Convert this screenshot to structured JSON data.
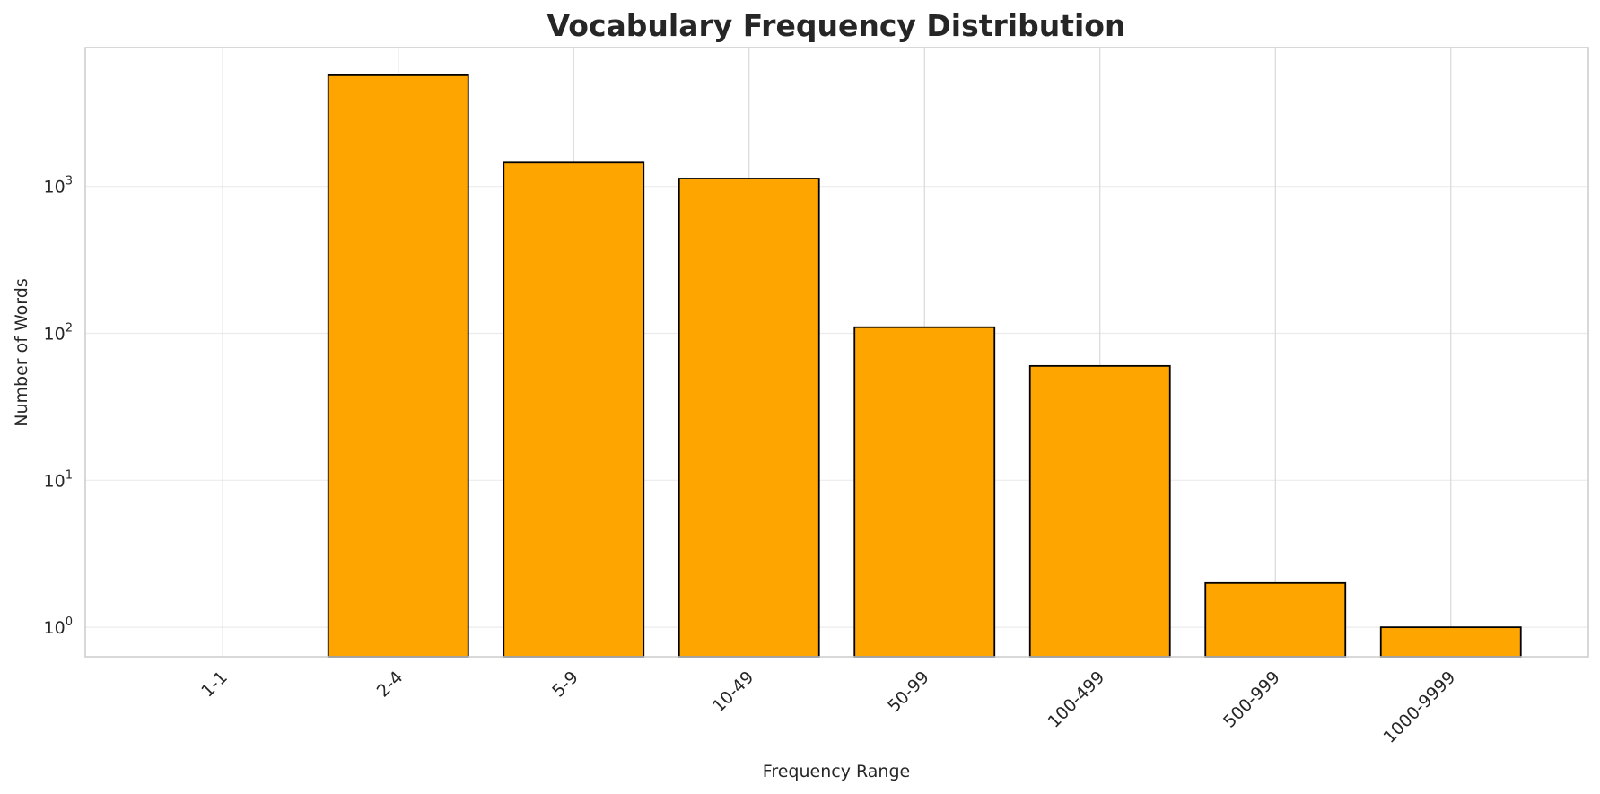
{
  "chart_data": {
    "type": "bar",
    "title": "Vocabulary Frequency Distribution",
    "xlabel": "Frequency Range",
    "ylabel": "Number of Words",
    "categories": [
      "1-1",
      "2-4",
      "5-9",
      "10-49",
      "50-99",
      "100-499",
      "500-999",
      "1000-9999"
    ],
    "values": [
      0,
      5700,
      1450,
      1130,
      110,
      60,
      2,
      1
    ],
    "y_scale": "log",
    "ylim": [
      0.63,
      8800
    ],
    "y_ticks": [
      {
        "value": 1,
        "base": "10",
        "exp": "0"
      },
      {
        "value": 10,
        "base": "10",
        "exp": "1"
      },
      {
        "value": 100,
        "base": "10",
        "exp": "2"
      },
      {
        "value": 1000,
        "base": "10",
        "exp": "3"
      }
    ],
    "grid": true,
    "bar_color": "#FFA500",
    "bar_edge_color": "#000000",
    "grid_color": "#EBEBEB",
    "axes_edge_color": "#CCCCCC"
  }
}
